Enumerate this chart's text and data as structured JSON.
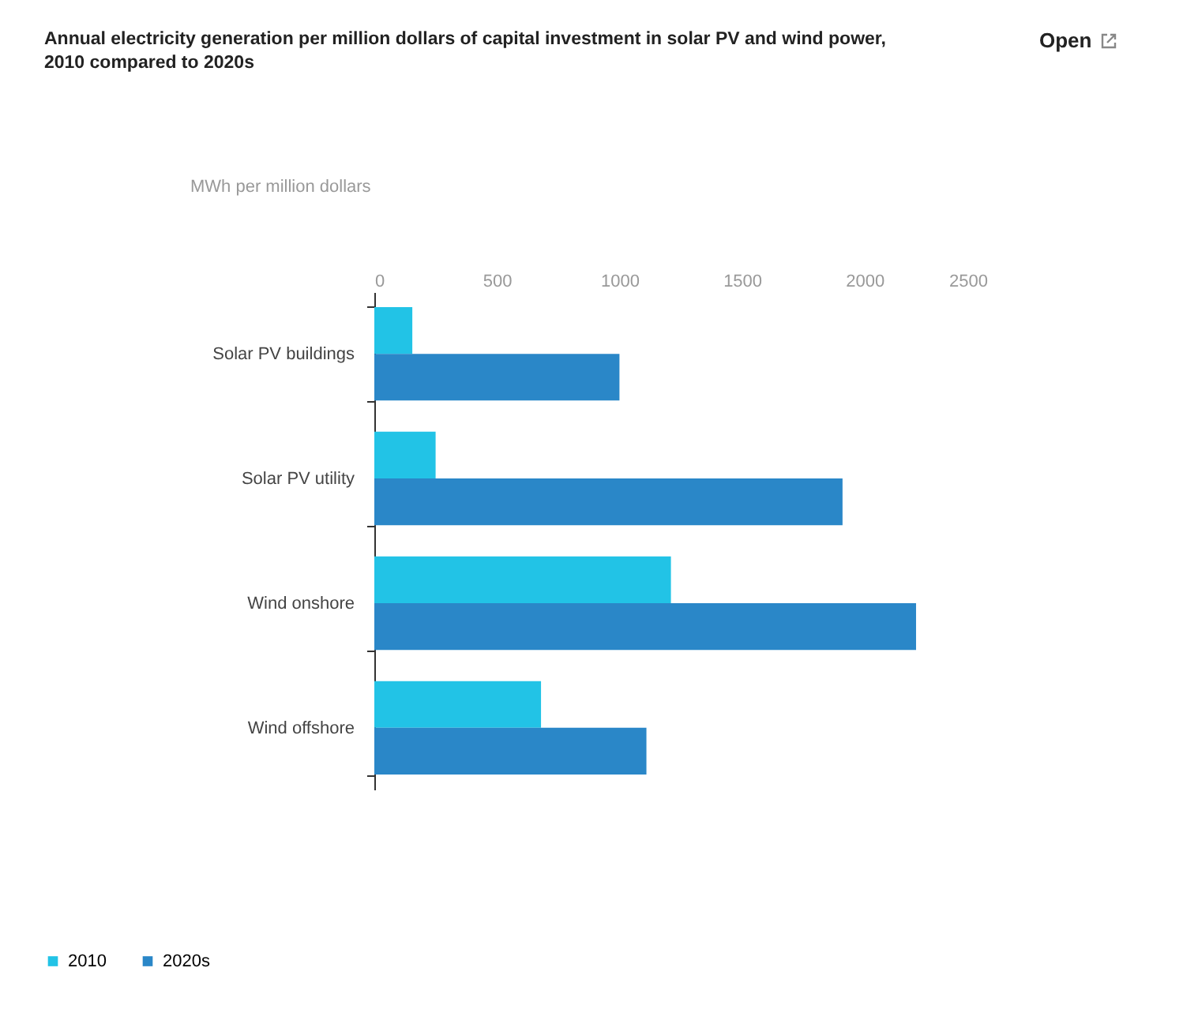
{
  "chart_data": {
    "type": "bar",
    "orientation": "horizontal",
    "title": "Annual electricity generation per million dollars of capital investment in solar PV and wind power, 2010 compared to 2020s",
    "xlabel": "MWh per million dollars",
    "categories": [
      "Solar PV buildings",
      "Solar PV utility",
      "Wind onshore",
      "Wind offshore"
    ],
    "series": [
      {
        "name": "2010",
        "color": "#22c3e6",
        "values": [
          155,
          250,
          1210,
          680
        ]
      },
      {
        "name": "2020s",
        "color": "#2a87c8",
        "values": [
          1000,
          1910,
          2210,
          1110
        ]
      }
    ],
    "xlim": [
      0,
      2500
    ],
    "xticks": [
      0,
      500,
      1000,
      1500,
      2000,
      2500
    ],
    "grid": false,
    "legend": "bottom left",
    "annotations": [
      "Open"
    ]
  }
}
